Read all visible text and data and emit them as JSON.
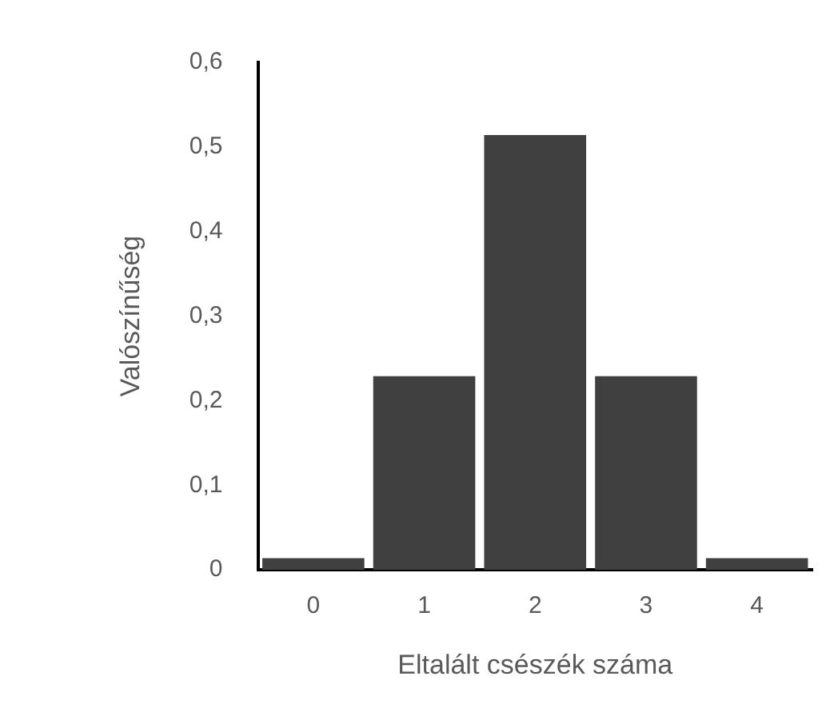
{
  "chart_data": {
    "type": "bar",
    "xlabel": "Eltalált csészék száma",
    "ylabel": "Valószínűség",
    "categories": [
      "0",
      "1",
      "2",
      "3",
      "4"
    ],
    "values": [
      0.014,
      0.229,
      0.514,
      0.229,
      0.014
    ],
    "color": "#404040",
    "ylim": [
      0,
      0.6
    ],
    "yticks": [
      0,
      {
        "value": 0.1,
        "label": "0,1"
      },
      {
        "value": 0.2,
        "label": "0,2"
      },
      {
        "value": 0.3,
        "label": "0,3"
      },
      {
        "value": 0.4,
        "label": "0,4"
      },
      {
        "value": 0.5,
        "label": "0,5"
      },
      {
        "value": 0.6,
        "label": "0,6"
      }
    ],
    "grid": false,
    "legend": false
  }
}
